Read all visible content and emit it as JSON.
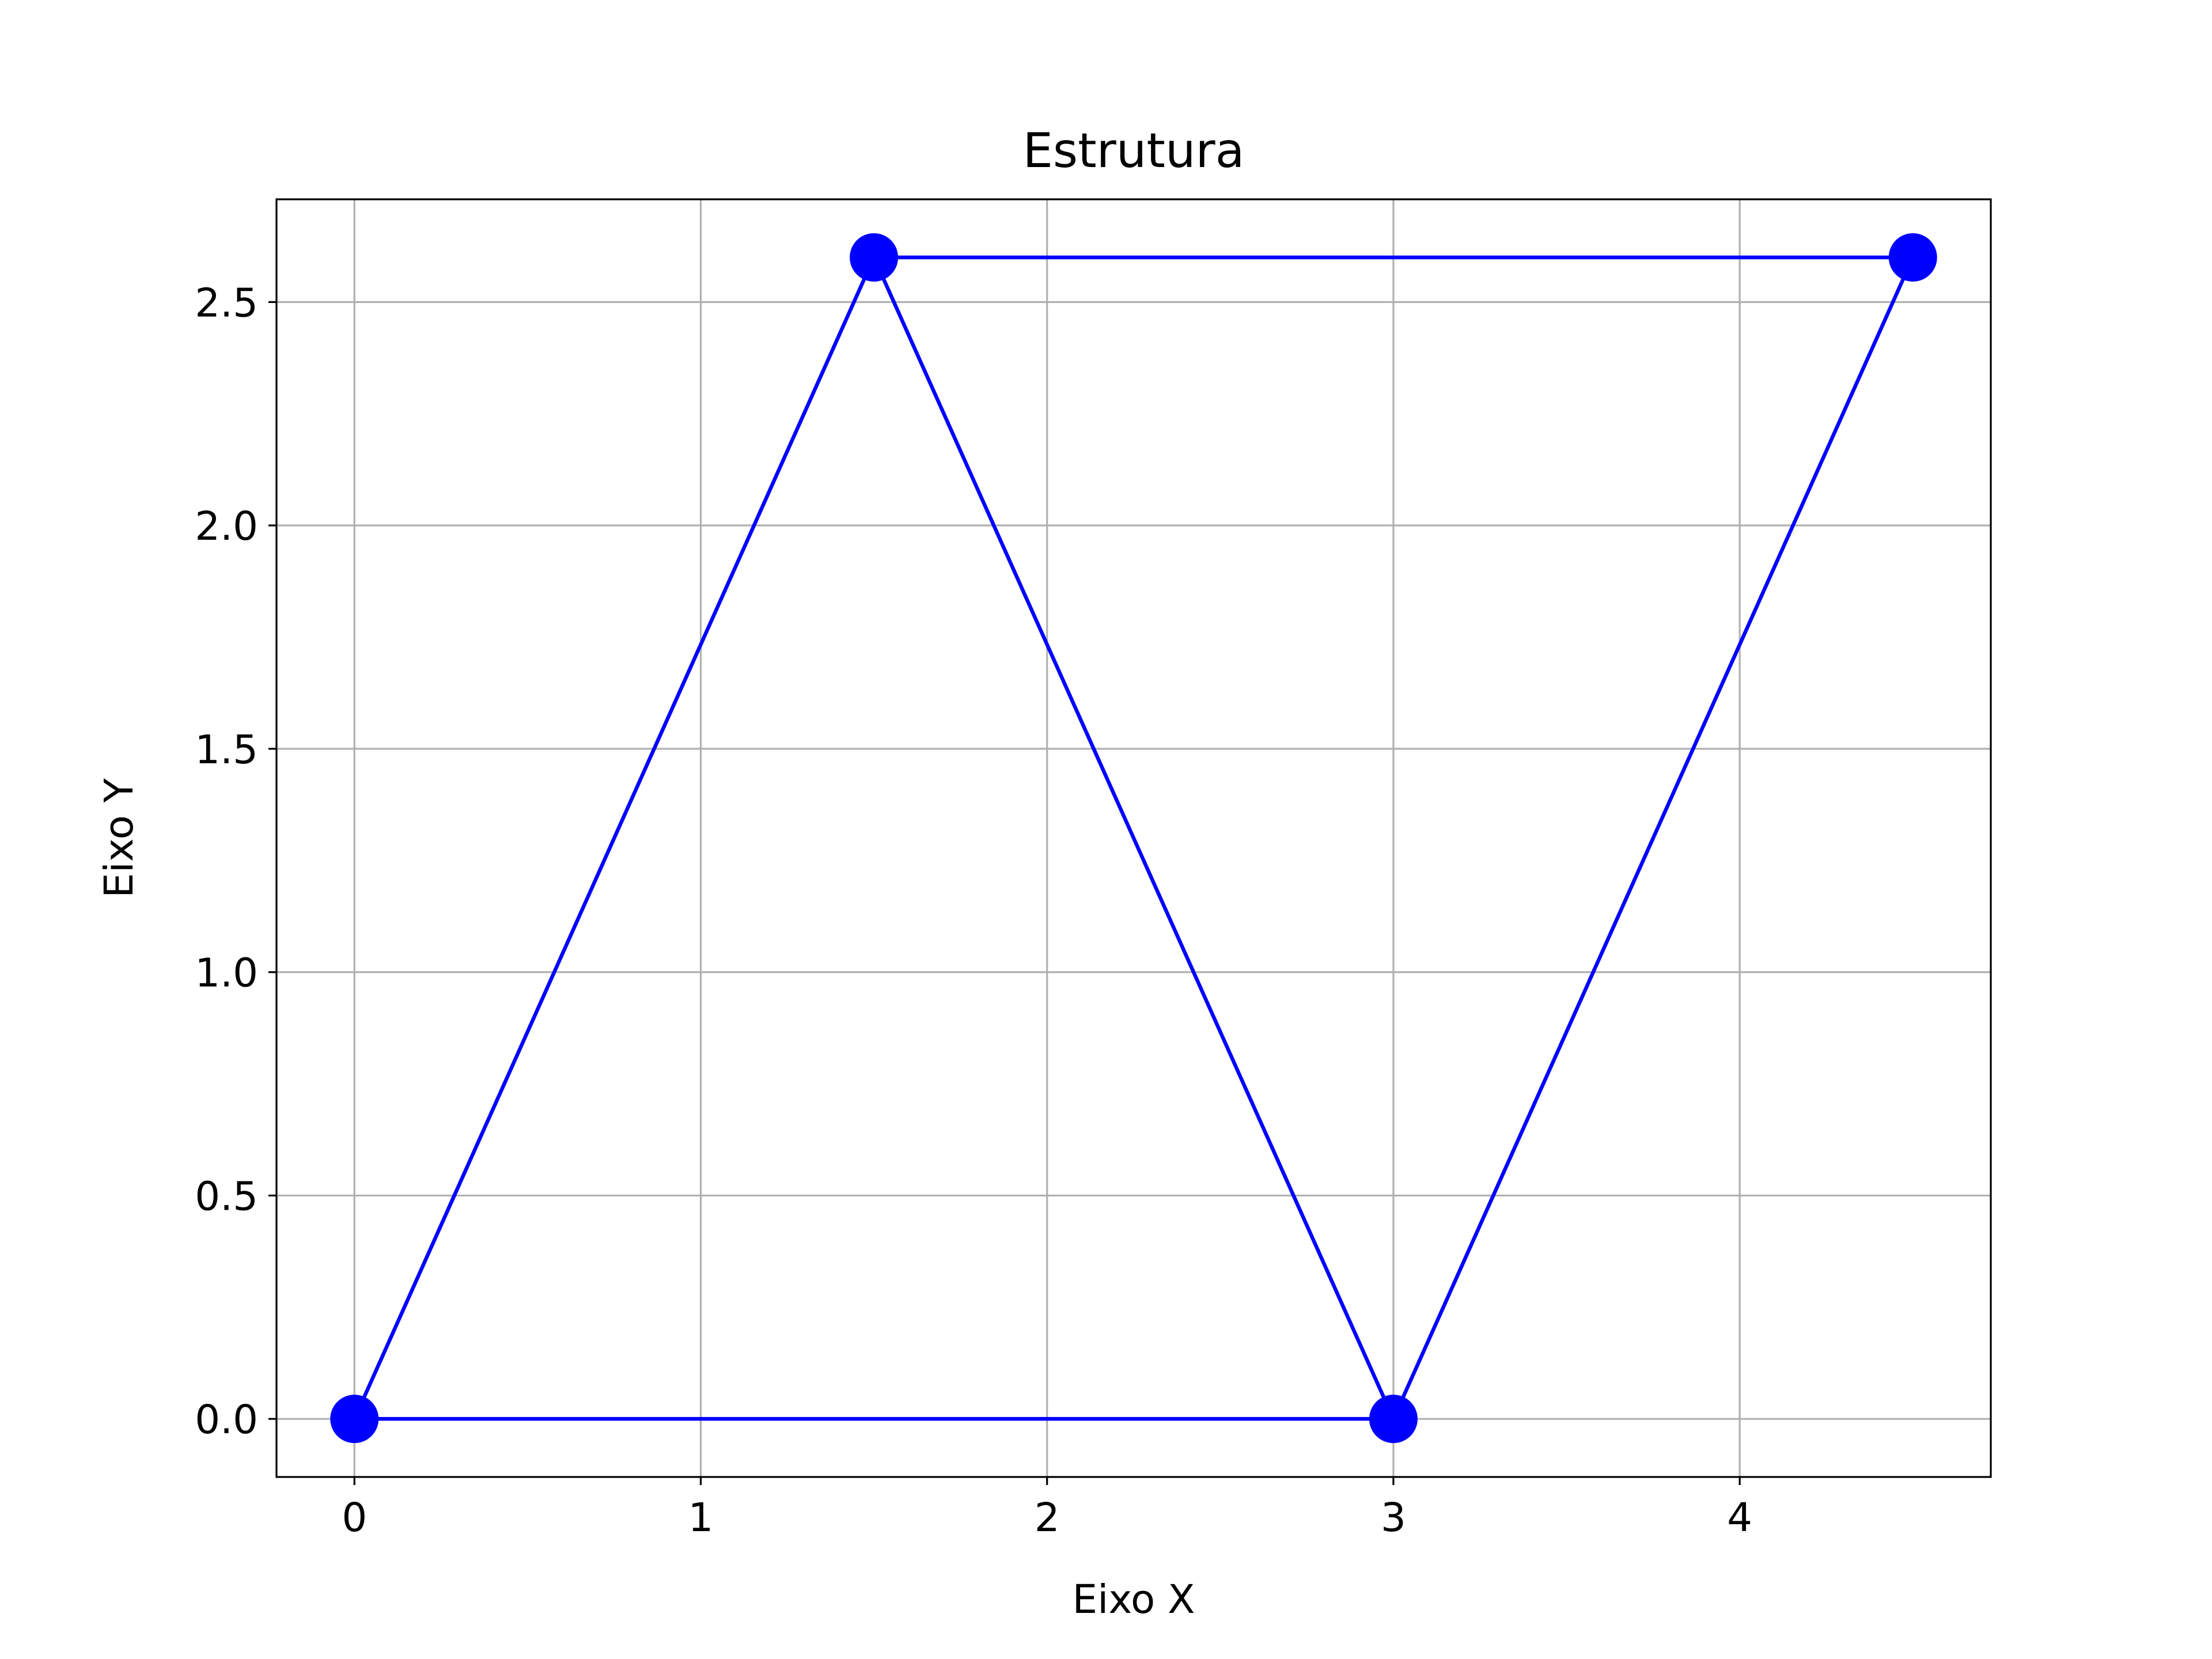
{
  "chart_data": {
    "type": "line",
    "title": "Estrutura",
    "xlabel": "Eixo X",
    "ylabel": "Eixo Y",
    "xlim": [
      -0.225,
      4.725
    ],
    "ylim": [
      -0.13,
      2.73
    ],
    "xticks": [
      0,
      1,
      2,
      3,
      4
    ],
    "xtick_labels": [
      "0",
      "1",
      "2",
      "3",
      "4"
    ],
    "yticks": [
      0.0,
      0.5,
      1.0,
      1.5,
      2.0,
      2.5
    ],
    "ytick_labels": [
      "0.0",
      "0.5",
      "1.0",
      "1.5",
      "2.0",
      "2.5"
    ],
    "grid": true,
    "color": "#0000ff",
    "grid_color": "#b0b0b0",
    "nodes": [
      {
        "x": 0.0,
        "y": 0.0
      },
      {
        "x": 1.5,
        "y": 2.6
      },
      {
        "x": 3.0,
        "y": 0.0
      },
      {
        "x": 4.5,
        "y": 2.6
      }
    ],
    "members": [
      {
        "x": [
          0.0,
          1.5
        ],
        "y": [
          0.0,
          2.6
        ]
      },
      {
        "x": [
          1.5,
          3.0
        ],
        "y": [
          2.6,
          0.0
        ]
      },
      {
        "x": [
          3.0,
          4.5
        ],
        "y": [
          0.0,
          2.6
        ]
      },
      {
        "x": [
          0.0,
          3.0
        ],
        "y": [
          0.0,
          0.0
        ]
      },
      {
        "x": [
          1.5,
          4.5
        ],
        "y": [
          2.6,
          2.6
        ]
      }
    ]
  }
}
